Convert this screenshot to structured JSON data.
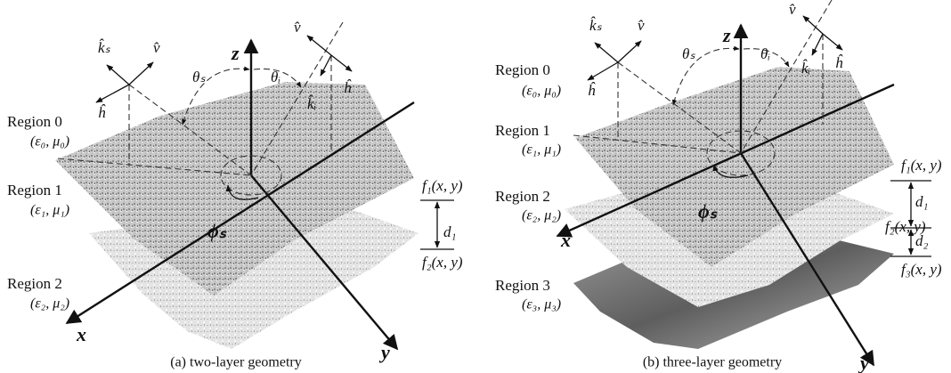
{
  "panels": [
    {
      "caption": "(a)  two-layer geometry",
      "regions": [
        {
          "name": "Region 0",
          "medium": "(ε₀, μ₀)"
        },
        {
          "name": "Region 1",
          "medium": "(ε₁, μ₁)"
        },
        {
          "name": "Region 2",
          "medium": "(ε₂, μ₂)"
        }
      ],
      "interfaces": [
        "f₁(x, y)",
        "f₂(x, y)"
      ],
      "thicknesses": [
        "d₁"
      ],
      "axes": {
        "x": "x",
        "y": "y",
        "z": "z"
      },
      "angles": {
        "theta_s": "θₛ",
        "theta_i": "θᵢ",
        "phi_s": "ϕₛ"
      },
      "vectors": {
        "k_s": "k̂ₛ",
        "v_s": "v̂",
        "h_s": "ĥ",
        "k_i": "k̂ᵢ",
        "v_i": "v̂",
        "h_i": "ĥ"
      }
    },
    {
      "caption": "(b)  three-layer geometry",
      "regions": [
        {
          "name": "Region 0",
          "medium": "(ε₀, μ₀)"
        },
        {
          "name": "Region 1",
          "medium": "(ε₁, μ₁)"
        },
        {
          "name": "Region 2",
          "medium": "(ε₂, μ₂)"
        },
        {
          "name": "Region 3",
          "medium": "(ε₃, μ₃)"
        }
      ],
      "interfaces": [
        "f₁(x, y)",
        "f₂(x, y)",
        "f₃(x, y)"
      ],
      "thicknesses": [
        "d₁",
        "d₂"
      ],
      "axes": {
        "x": "x",
        "y": "y",
        "z": "z"
      },
      "angles": {
        "theta_s": "θₛ",
        "theta_i": "θᵢ",
        "phi_s": "ϕₛ"
      },
      "vectors": {
        "k_s": "k̂ₛ",
        "v_s": "v̂",
        "h_s": "ĥ",
        "k_i": "k̂ᵢ",
        "v_i": "v̂",
        "h_i": "ĥ"
      }
    }
  ]
}
